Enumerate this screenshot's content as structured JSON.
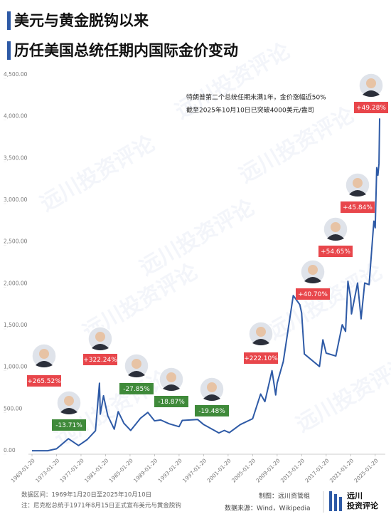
{
  "chart_data": {
    "type": "line",
    "title": "美元与黄金脱钩以来",
    "subtitle": "历任美国总统任期内国际金价变动",
    "x": [
      "1969-01-20",
      "1971-08-15",
      "1973-01-20",
      "1974-12-30",
      "1976-08-25",
      "1978-01-20",
      "1979-06-01",
      "1980-01-21",
      "1980-03-15",
      "1980-09-22",
      "1981-06-01",
      "1982-06-21",
      "1983-02-15",
      "1984-01-20",
      "1985-02-25",
      "1986-10-01",
      "1987-12-14",
      "1989-01-20",
      "1990-01-20",
      "1991-06-01",
      "1993-01-20",
      "1993-07-30",
      "1996-02-05",
      "1997-01-20",
      "1999-07-20",
      "2000-06-01",
      "2001-04-01",
      "2003-01-20",
      "2005-01-20",
      "2006-05-12",
      "2007-01-20",
      "2008-03-17",
      "2008-10-24",
      "2009-01-20",
      "2010-01-20",
      "2011-09-05",
      "2012-10-04",
      "2013-01-20",
      "2013-06-28",
      "2015-12-17",
      "2016-07-06",
      "2017-01-20",
      "2018-08-16",
      "2019-09-04",
      "2020-03-19",
      "2020-08-06",
      "2021-01-20",
      "2021-03-08",
      "2022-03-08",
      "2022-09-28",
      "2023-05-04",
      "2024-01-20",
      "2024-10-30",
      "2025-01-20",
      "2025-04-21",
      "2025-07-01",
      "2025-09-01",
      "2025-10-10"
    ],
    "values": [
      42,
      42,
      65,
      186,
      104,
      175,
      280,
      850,
      480,
      700,
      460,
      300,
      510,
      370,
      285,
      430,
      500,
      400,
      410,
      365,
      330,
      405,
      415,
      355,
      255,
      285,
      258,
      355,
      425,
      720,
      630,
      1000,
      710,
      850,
      1110,
      1900,
      1790,
      1690,
      1200,
      1050,
      1370,
      1210,
      1175,
      1550,
      1470,
      2070,
      1870,
      1680,
      2050,
      1620,
      2050,
      2030,
      2790,
      2710,
      3430,
      3340,
      3480,
      4020
    ],
    "color": "#2e5aa6",
    "xlim": [
      "1969-01-20",
      "2025-10-10"
    ],
    "xticks": [
      "1969-01-20",
      "1973-01-20",
      "1977-01-20",
      "1981-01-20",
      "1985-01-20",
      "1989-01-20",
      "1993-01-20",
      "1997-01-20",
      "2001-01-20",
      "2005-01-20",
      "2009-01-20",
      "2013-01-20",
      "2017-01-20",
      "2021-01-20",
      "2025-01-20"
    ],
    "ylim": [
      0,
      4500
    ],
    "yticks": [
      {
        "value": 0,
        "label": "0.00"
      },
      {
        "value": 500,
        "label": "500.00"
      },
      {
        "value": 1000,
        "label": "1,000.00"
      },
      {
        "value": 1500,
        "label": "1,500.00"
      },
      {
        "value": 2000,
        "label": "2,000.00"
      },
      {
        "value": 2500,
        "label": "2,500.00"
      },
      {
        "value": 3000,
        "label": "3,000.00"
      },
      {
        "value": 3500,
        "label": "3,500.00"
      },
      {
        "value": 4000,
        "label": "4,000.00"
      },
      {
        "value": 4500,
        "label": "4,500.00"
      }
    ],
    "grid": false,
    "term_labels": [
      {
        "text": "+265.52%",
        "color": "#e8464b"
      },
      {
        "text": "-13.71%",
        "color": "#3f8a3a"
      },
      {
        "text": "+322.24%",
        "color": "#e8464b"
      },
      {
        "text": "-27.85%",
        "color": "#3f8a3a"
      },
      {
        "text": "-18.87%",
        "color": "#3f8a3a"
      },
      {
        "text": "-19.48%",
        "color": "#3f8a3a"
      },
      {
        "text": "+222.10%",
        "color": "#e8464b"
      },
      {
        "text": "+40.70%",
        "color": "#e8464b"
      },
      {
        "text": "+54.65%",
        "color": "#e8464b"
      },
      {
        "text": "+45.84%",
        "color": "#e8464b"
      },
      {
        "text": "+49.28%",
        "color": "#e8464b"
      }
    ],
    "annotations": [
      "特朗普第二个总统任期未满1年，金价涨幅近50%",
      "截至2025年10月10日已突破4000美元/盎司"
    ],
    "watermark": "远川投资评论",
    "footer": {
      "range": "数据区间：1969年1月20日至2025年10月10日",
      "note": "注：尼克松总统于1971年8月15日正式宣布美元与黄金脱钩",
      "credit": "制图：远川资管组",
      "source": "数据来源：Wind，Wikipedia",
      "logo_top": "远川",
      "logo_bottom": "投资评论"
    }
  }
}
